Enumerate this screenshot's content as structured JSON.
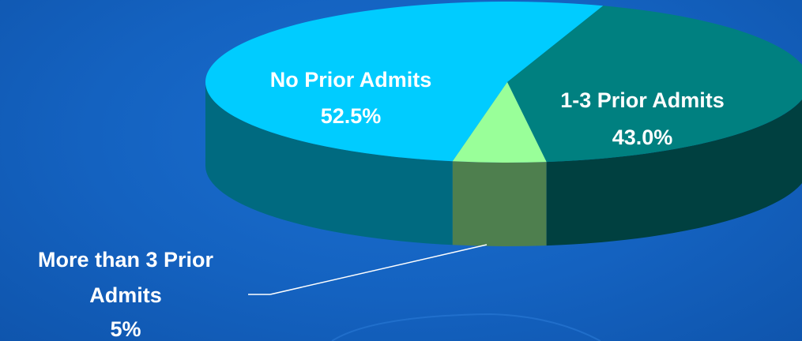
{
  "chart_data": {
    "type": "pie",
    "style": "3d",
    "slices": [
      {
        "label": "No Prior Admits",
        "value": 52.5,
        "value_text": "52.5%",
        "color": "#00ccff",
        "side_color": "#006a80"
      },
      {
        "label": "1-3 Prior Admits",
        "value": 43.0,
        "value_text": "43.0%",
        "color": "#008080",
        "side_color": "#004040"
      },
      {
        "label": "More than 3 Prior Admits",
        "value": 5,
        "value_text": "5%",
        "color": "#99ff99",
        "side_color": "#4e7f4e"
      }
    ],
    "callout_label_lines": [
      "More than 3 Prior",
      "Admits",
      "5%"
    ],
    "background_color": "#1565c6"
  }
}
